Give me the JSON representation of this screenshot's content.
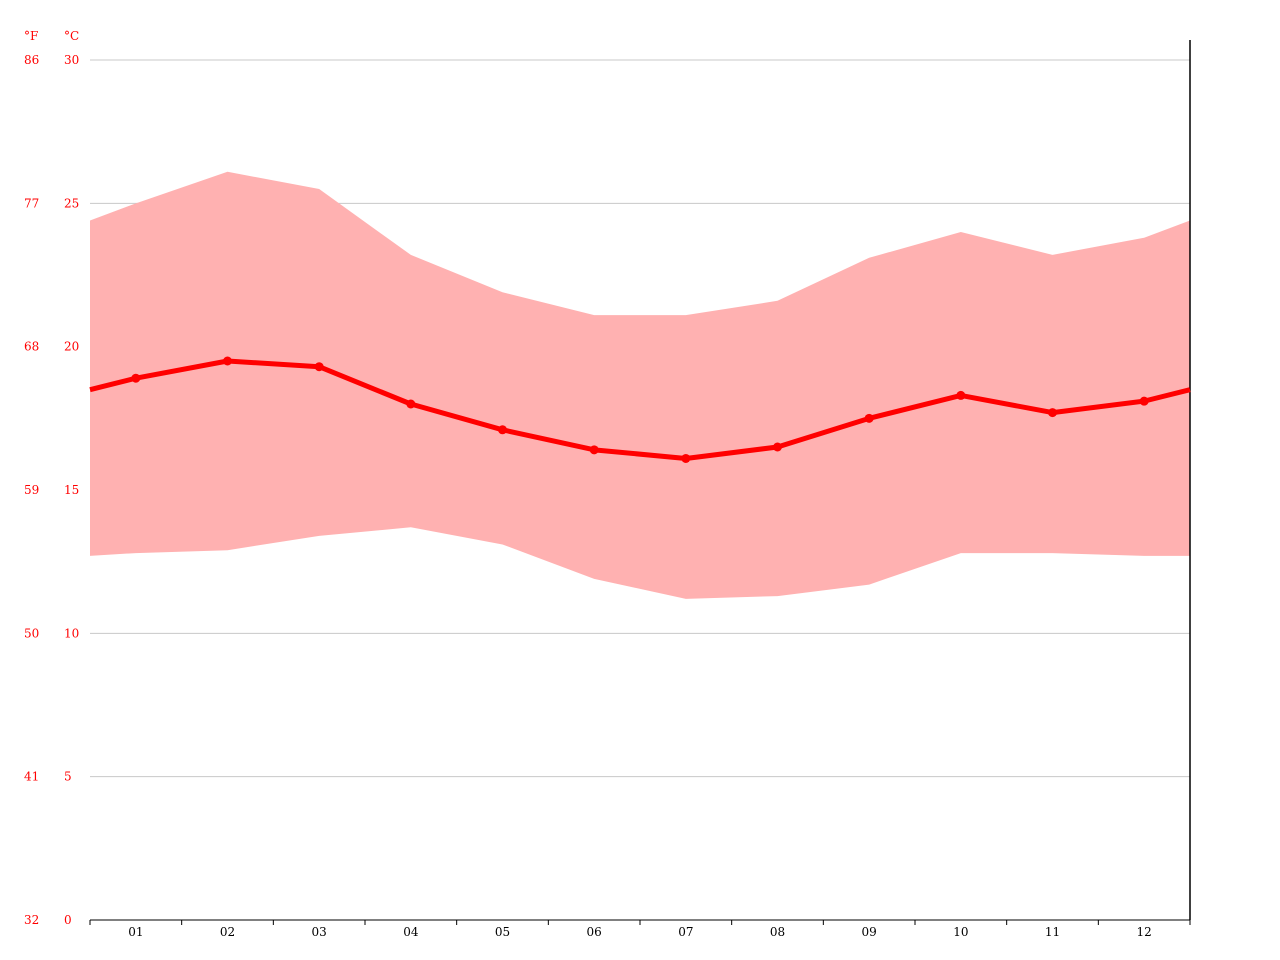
{
  "colors": {
    "mean_line": "#ff0000",
    "band_fill": "#ffb1b1",
    "grid": "#c8c8c8",
    "axis": "#000000",
    "axis_label_text": "#ff0000",
    "month_label_text": "#000000"
  },
  "chart_data": {
    "type": "line",
    "categories": [
      "01",
      "02",
      "03",
      "04",
      "05",
      "06",
      "07",
      "08",
      "09",
      "10",
      "11",
      "12"
    ],
    "y_axis_left": {
      "unit_label": "°F",
      "ticks": [
        "32",
        "41",
        "50",
        "59",
        "68",
        "77",
        "86"
      ]
    },
    "y_axis_right": {
      "unit_label": "°C",
      "ticks": [
        "0",
        "5",
        "10",
        "15",
        "20",
        "25",
        "30"
      ],
      "values": [
        0,
        5,
        10,
        15,
        20,
        25,
        30
      ]
    },
    "ylim": [
      0,
      30
    ],
    "grid": true,
    "series": [
      {
        "kind": "mean",
        "values": [
          18.9,
          19.5,
          19.3,
          18.0,
          17.1,
          16.4,
          16.1,
          16.5,
          17.5,
          18.3,
          17.7,
          18.1
        ]
      },
      {
        "kind": "band_max",
        "values": [
          25.0,
          26.1,
          25.5,
          23.2,
          21.9,
          21.1,
          21.1,
          21.6,
          23.1,
          24.0,
          23.2,
          23.8
        ]
      },
      {
        "kind": "band_min",
        "values": [
          12.8,
          12.9,
          13.4,
          13.7,
          13.1,
          11.9,
          11.2,
          11.3,
          11.7,
          12.8,
          12.8,
          12.7
        ]
      }
    ],
    "edge_values": {
      "mean": 18.5,
      "band_max": 24.4,
      "band_min": 12.7
    }
  }
}
